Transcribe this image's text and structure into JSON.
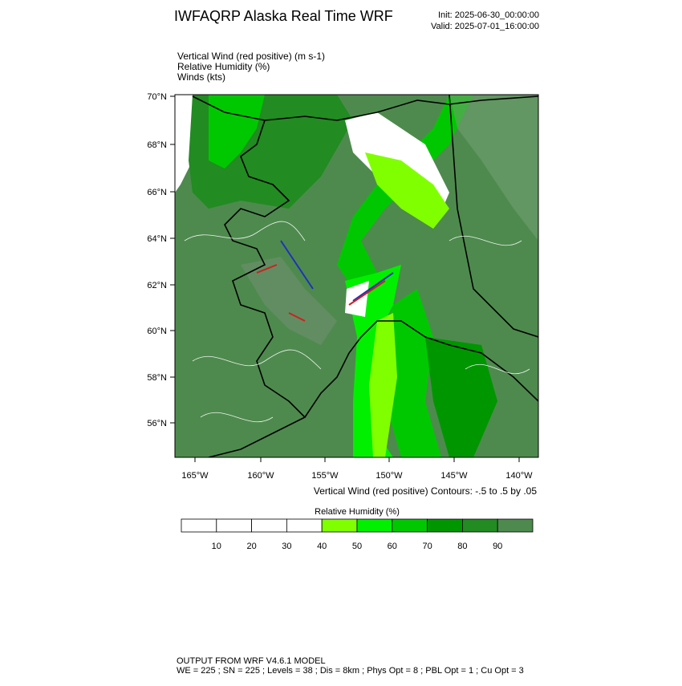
{
  "header": {
    "title": "IWFAQRP Alaska Real Time WRF",
    "init": "Init: 2025-06-30_00:00:00",
    "valid": "Valid: 2025-07-01_16:00:00"
  },
  "fields": [
    "Vertical Wind (red positive)   (m s-1)",
    "Relative Humidity   (%)",
    "Winds   (kts)"
  ],
  "map": {
    "lat_labels": [
      "70°N",
      "68°N",
      "66°N",
      "64°N",
      "62°N",
      "60°N",
      "58°N",
      "56°N"
    ],
    "lon_labels": [
      "165°W",
      "160°W",
      "155°W",
      "150°W",
      "145°W",
      "140°W"
    ],
    "contour_note": "Vertical Wind (red positive) Contours: -.5 to .5 by .05"
  },
  "colorbar": {
    "title": "Relative Humidity  (%)",
    "labels": [
      10,
      20,
      30,
      40,
      50,
      60,
      70,
      80,
      90
    ],
    "colors": [
      "#ffffff",
      "#ffffff",
      "#ffffff",
      "#ffffff",
      "#80ff00",
      "#00f000",
      "#00c800",
      "#009600",
      "#228b22",
      "#4e8a4e"
    ]
  },
  "footer": {
    "line1": "OUTPUT FROM WRF V4.6.1 MODEL",
    "line2": "WE = 225 ; SN = 225 ; Levels = 38 ; Dis = 8km ; Phys Opt = 8 ; PBL Opt = 1 ; Cu Opt = 3"
  }
}
